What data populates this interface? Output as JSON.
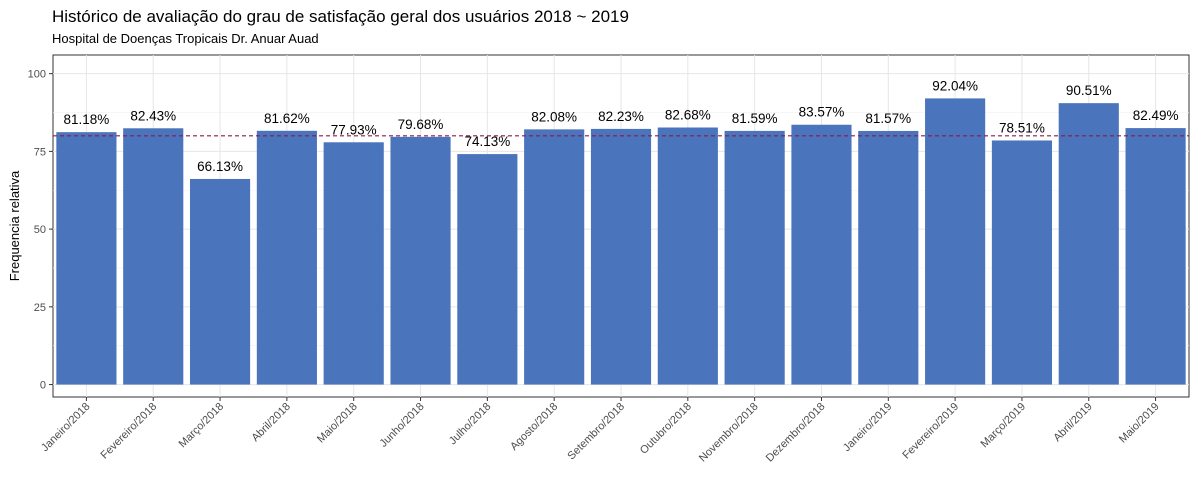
{
  "chart_data": {
    "type": "bar",
    "title": "Histórico de avaliação do grau de satisfação geral dos usuários 2018 ~ 2019",
    "subtitle": "Hospital de Doenças Tropicais Dr. Anuar Auad",
    "xlabel": "",
    "ylabel": "Frequencia relativa",
    "ylim": [
      -4,
      106
    ],
    "yticks": [
      0,
      25,
      50,
      75,
      100
    ],
    "grid": true,
    "reference_line": {
      "y": 80,
      "style": "dashed",
      "color": "#8b1a4a"
    },
    "bar_color": "#4a74bc",
    "categories": [
      "Janeiro/2018",
      "Fevereiro/2018",
      "Março/2018",
      "Abril/2018",
      "Maio/2018",
      "Junho/2018",
      "Julho/2018",
      "Agosto/2018",
      "Setembro/2018",
      "Outubro/2018",
      "Novembro/2018",
      "Dezembro/2018",
      "Janeiro/2019",
      "Fevereiro/2019",
      "Março/2019",
      "Abril/2019",
      "Maio/2019"
    ],
    "values": [
      81.18,
      82.43,
      66.13,
      81.62,
      77.93,
      79.68,
      74.13,
      82.08,
      82.23,
      82.68,
      81.59,
      83.57,
      81.57,
      92.04,
      78.51,
      90.51,
      82.49
    ],
    "data_labels": [
      "81.18%",
      "82.43%",
      "66.13%",
      "81.62%",
      "77.93%",
      "79.68%",
      "74.13%",
      "82.08%",
      "82.23%",
      "82.68%",
      "81.59%",
      "83.57%",
      "81.57%",
      "92.04%",
      "78.51%",
      "90.51%",
      "82.49%"
    ]
  }
}
